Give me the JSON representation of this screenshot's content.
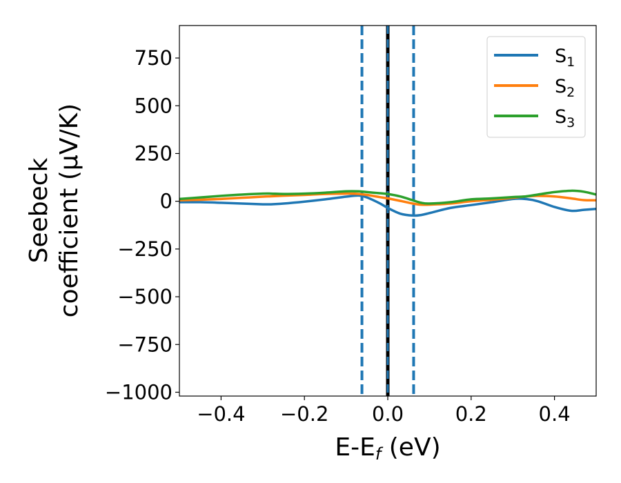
{
  "chart_data": {
    "type": "line",
    "title": "",
    "xlabel": "E-E_f (eV)",
    "xlabel_parts": {
      "main": "E-E",
      "sub": "f",
      "tail": " (eV)"
    },
    "ylabel_lines": [
      "Seebeck",
      "coefficient  (μV/K)"
    ],
    "xlim": [
      -0.5,
      0.5
    ],
    "ylim": [
      -1020,
      920
    ],
    "xticks": [
      -0.4,
      -0.2,
      0.0,
      0.2,
      0.4
    ],
    "xtick_labels": [
      "−0.4",
      "−0.2",
      "0.0",
      "0.2",
      "0.4"
    ],
    "yticks": [
      750,
      500,
      250,
      0,
      -250,
      -500,
      -750,
      -1000
    ],
    "ytick_labels": [
      "750",
      "500",
      "250",
      "0",
      "−250",
      "−500",
      "−750",
      "−1000"
    ],
    "grid": false,
    "legend_position": "top-right",
    "x": [
      -0.5,
      -0.45,
      -0.4,
      -0.35,
      -0.3,
      -0.28,
      -0.25,
      -0.2,
      -0.15,
      -0.1,
      -0.07,
      -0.05,
      -0.02,
      0.0,
      0.03,
      0.06,
      0.08,
      0.1,
      0.15,
      0.2,
      0.25,
      0.3,
      0.33,
      0.36,
      0.4,
      0.44,
      0.47,
      0.5
    ],
    "series": [
      {
        "name_main": "S",
        "name_sub": "1",
        "color": "#1f77b4",
        "values": [
          -5,
          -5,
          -8,
          -12,
          -16,
          -16,
          -12,
          -2,
          10,
          24,
          30,
          20,
          -10,
          -35,
          -65,
          -75,
          -72,
          -62,
          -35,
          -20,
          -5,
          12,
          12,
          0,
          -30,
          -50,
          -45,
          -40
        ]
      },
      {
        "name_main": "S",
        "name_sub": "2",
        "color": "#ff7f0e",
        "values": [
          5,
          8,
          12,
          18,
          24,
          26,
          29,
          33,
          38,
          40,
          38,
          33,
          22,
          15,
          2,
          -12,
          -18,
          -18,
          -12,
          0,
          8,
          18,
          25,
          28,
          25,
          15,
          6,
          5
        ]
      },
      {
        "name_main": "S",
        "name_sub": "3",
        "color": "#2ca02c",
        "values": [
          12,
          20,
          28,
          35,
          40,
          40,
          38,
          40,
          45,
          52,
          52,
          48,
          42,
          38,
          25,
          5,
          -8,
          -12,
          -5,
          10,
          15,
          22,
          25,
          35,
          48,
          55,
          50,
          35
        ]
      }
    ],
    "vlines": [
      {
        "x": 0.0,
        "color": "#000000",
        "style": "solid"
      },
      {
        "x": 0.0,
        "color": "#1f77b4",
        "style": "solid"
      },
      {
        "x": -0.062,
        "color": "#1f77b4",
        "style": "dashed"
      },
      {
        "x": 0.062,
        "color": "#1f77b4",
        "style": "dashed"
      }
    ]
  }
}
